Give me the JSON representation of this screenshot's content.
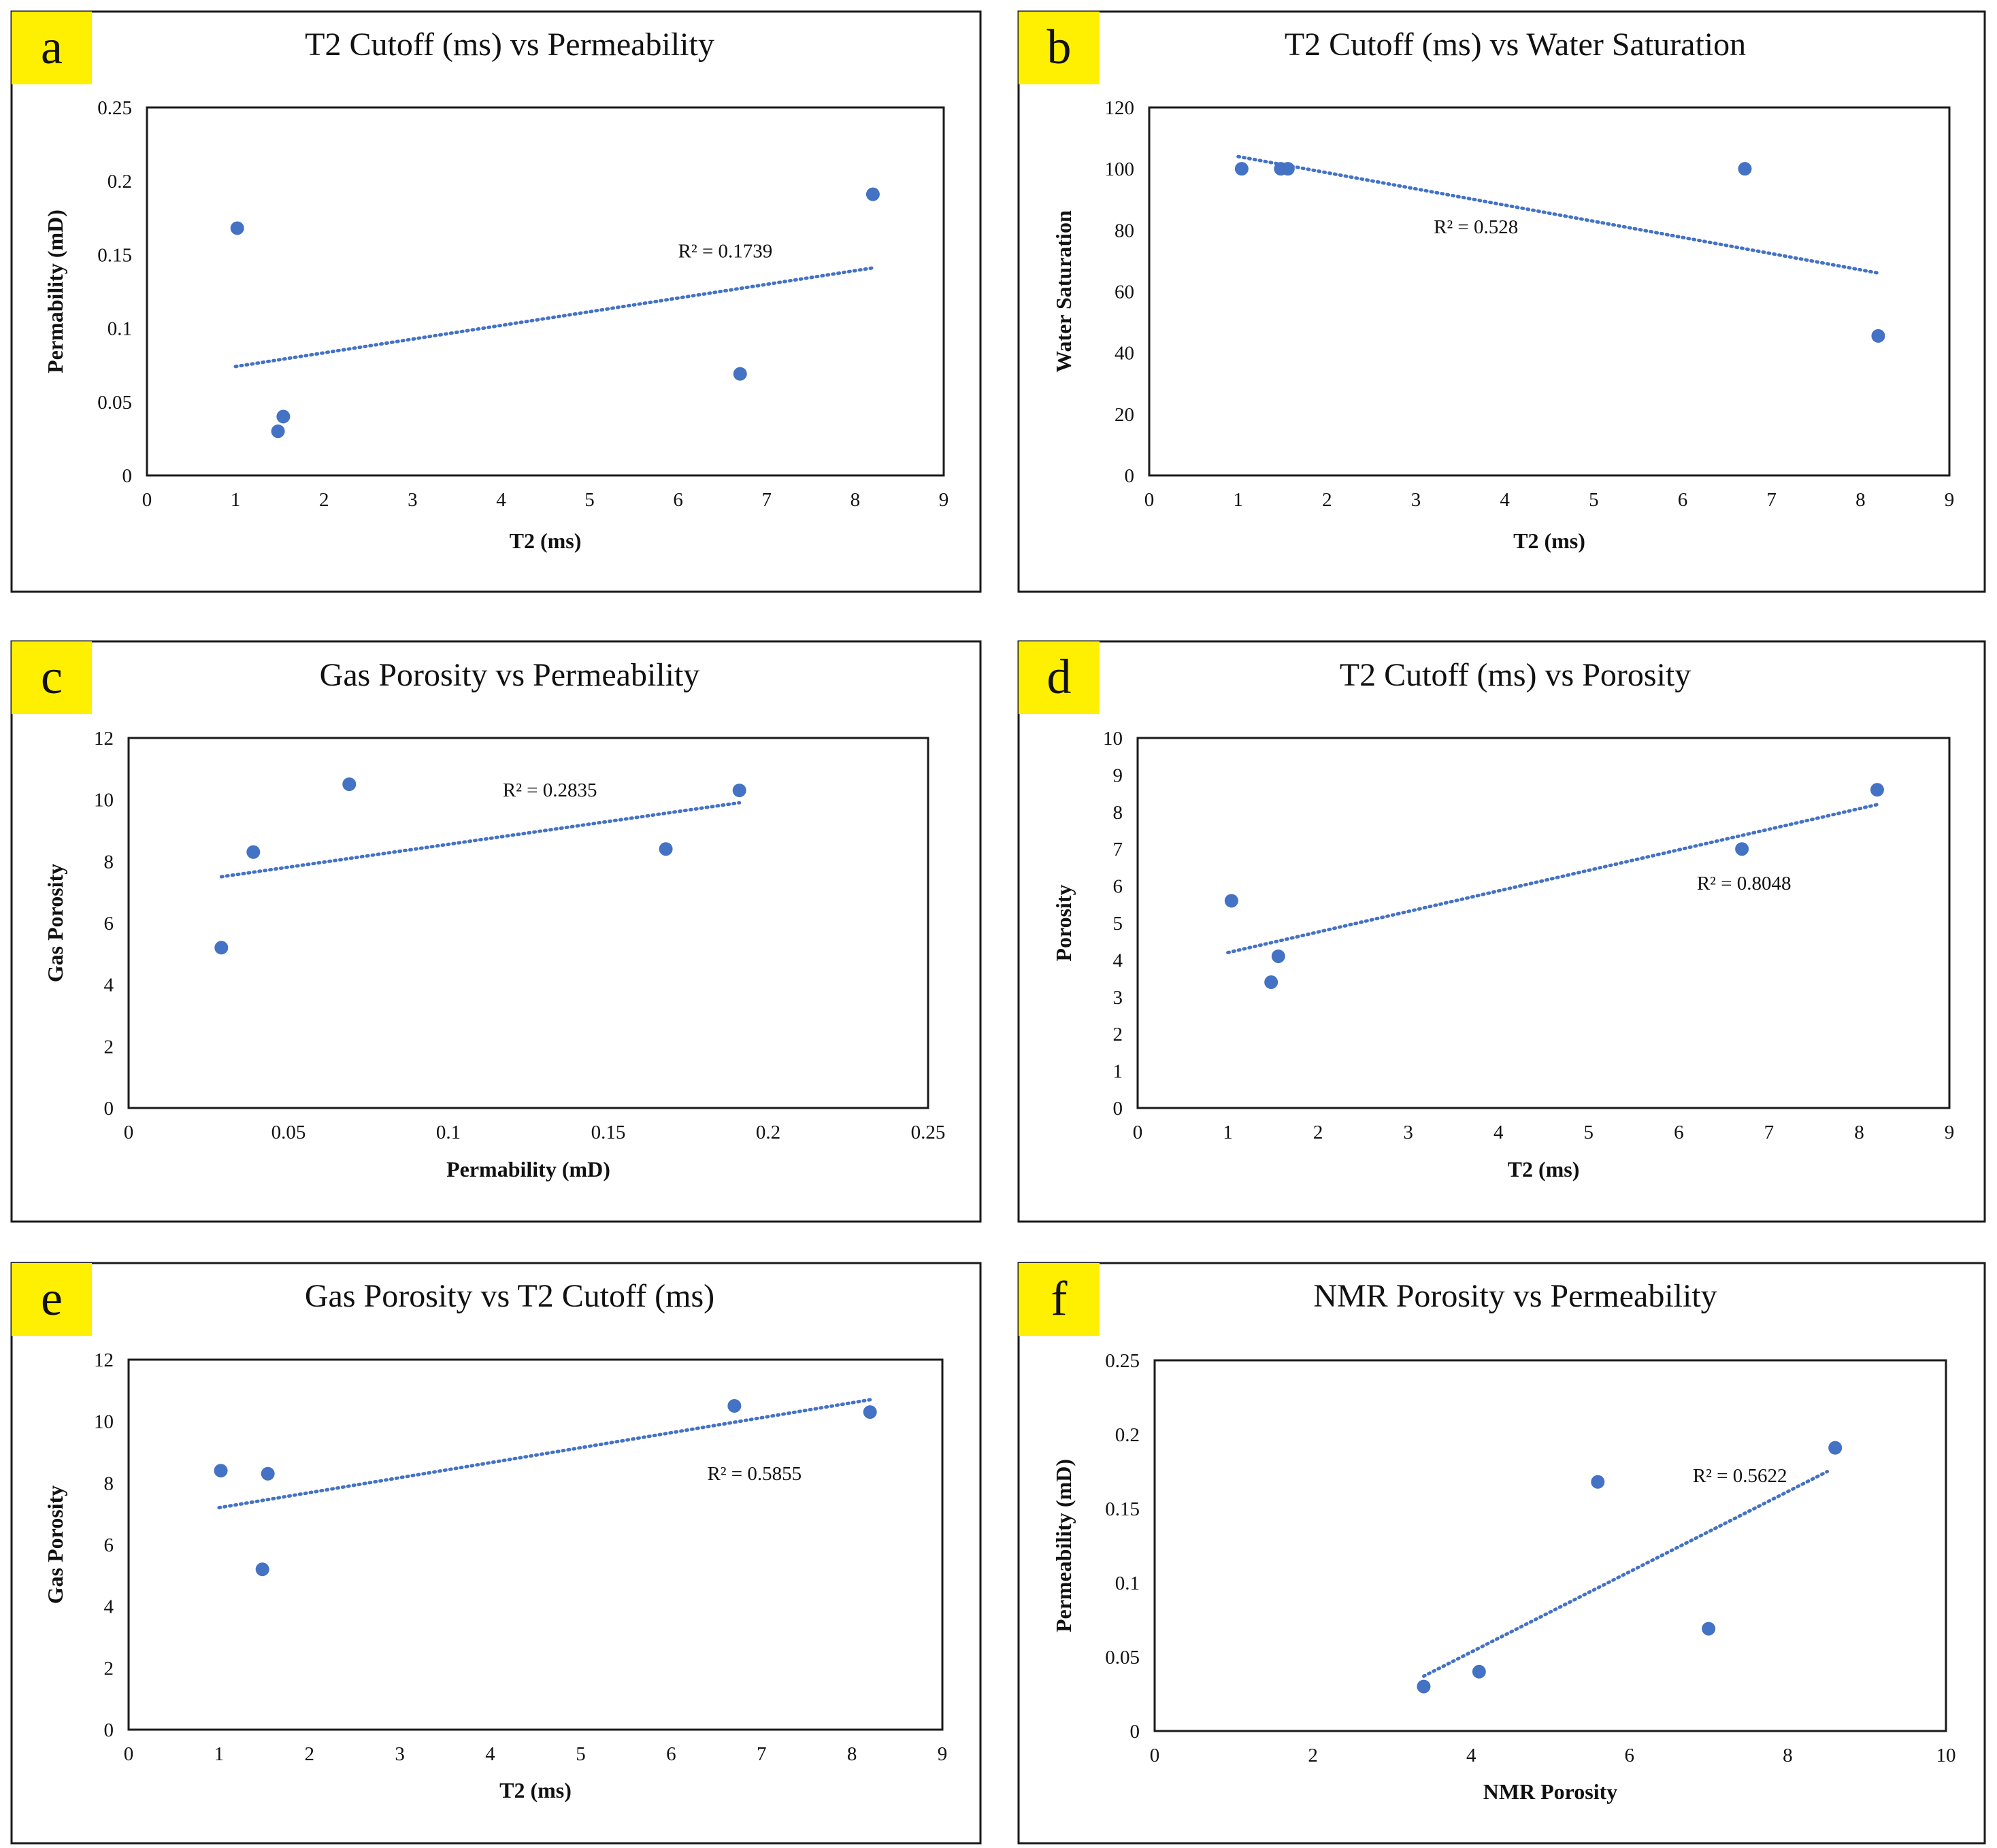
{
  "figure": {
    "accent_color": "#4472c4",
    "letter_bg_color": "#ffef00"
  },
  "chart_data": [
    {
      "panel": "a",
      "type": "scatter",
      "title": "T2 Cutoff (ms) vs Permeability",
      "xlabel": "T2 (ms)",
      "ylabel": "Permability (mD)",
      "xlim": [
        0,
        9
      ],
      "ylim": [
        0,
        0.25
      ],
      "xticks": [
        0,
        1,
        2,
        3,
        4,
        5,
        6,
        7,
        8,
        9
      ],
      "yticks": [
        0,
        0.05,
        0.1,
        0.15,
        0.2,
        0.25
      ],
      "xtick_labels": [
        "0",
        "1",
        "2",
        "3",
        "4",
        "5",
        "6",
        "7",
        "8",
        "9"
      ],
      "ytick_labels": [
        "0",
        "0.05",
        "0.1",
        "0.15",
        "0.2",
        "0.25"
      ],
      "points": [
        [
          1.02,
          0.168
        ],
        [
          1.48,
          0.03
        ],
        [
          1.54,
          0.04
        ],
        [
          6.7,
          0.069
        ],
        [
          8.2,
          0.191
        ]
      ],
      "trendline": [
        [
          1.0,
          0.074
        ],
        [
          8.2,
          0.141
        ]
      ],
      "r2_label": "R² = 0.1739",
      "r2_anchor": [
        6.0,
        0.148
      ]
    },
    {
      "panel": "b",
      "type": "scatter",
      "title": "T2 Cutoff  (ms) vs Water Saturation",
      "xlabel": "T2 (ms)",
      "ylabel": "Water Saturation",
      "xlim": [
        0,
        9
      ],
      "ylim": [
        0,
        120
      ],
      "xticks": [
        0,
        1,
        2,
        3,
        4,
        5,
        6,
        7,
        8,
        9
      ],
      "yticks": [
        0,
        20,
        40,
        60,
        80,
        100,
        120
      ],
      "xtick_labels": [
        "0",
        "1",
        "2",
        "3",
        "4",
        "5",
        "6",
        "7",
        "8",
        "9"
      ],
      "ytick_labels": [
        "0",
        "20",
        "40",
        "60",
        "80",
        "100",
        "120"
      ],
      "points": [
        [
          1.04,
          100
        ],
        [
          1.48,
          100
        ],
        [
          1.56,
          100
        ],
        [
          6.7,
          100
        ],
        [
          8.2,
          45.5
        ]
      ],
      "trendline": [
        [
          1.0,
          104
        ],
        [
          8.2,
          66
        ]
      ],
      "r2_label": "R² = 0.528",
      "r2_anchor": [
        3.2,
        79
      ]
    },
    {
      "panel": "c",
      "type": "scatter",
      "title": "Gas Porosity vs Permeability",
      "xlabel": "Permability (mD)",
      "ylabel": "Gas Porosity",
      "xlim": [
        0,
        0.25
      ],
      "ylim": [
        0,
        12
      ],
      "xticks": [
        0,
        0.05,
        0.1,
        0.15,
        0.2,
        0.25
      ],
      "yticks": [
        0,
        2,
        4,
        6,
        8,
        10,
        12
      ],
      "xtick_labels": [
        "0",
        "0.05",
        "0.1",
        "0.15",
        "0.2",
        "0.25"
      ],
      "ytick_labels": [
        "0",
        "2",
        "4",
        "6",
        "8",
        "10",
        "12"
      ],
      "points": [
        [
          0.029,
          5.2
        ],
        [
          0.039,
          8.3
        ],
        [
          0.069,
          10.5
        ],
        [
          0.168,
          8.4
        ],
        [
          0.191,
          10.3
        ]
      ],
      "trendline": [
        [
          0.029,
          7.5
        ],
        [
          0.191,
          9.9
        ]
      ],
      "r2_label": "R² = 0.2835",
      "r2_anchor": [
        0.117,
        10.1
      ]
    },
    {
      "panel": "d",
      "type": "scatter",
      "title": "T2 Cutoff (ms) vs Porosity",
      "xlabel": "T2 (ms)",
      "ylabel": "Porosity",
      "xlim": [
        0,
        9
      ],
      "ylim": [
        0,
        10
      ],
      "xticks": [
        0,
        1,
        2,
        3,
        4,
        5,
        6,
        7,
        8,
        9
      ],
      "yticks": [
        0,
        1,
        2,
        3,
        4,
        5,
        6,
        7,
        8,
        9,
        10
      ],
      "xtick_labels": [
        "0",
        "1",
        "2",
        "3",
        "4",
        "5",
        "6",
        "7",
        "8",
        "9"
      ],
      "ytick_labels": [
        "0",
        "1",
        "2",
        "3",
        "4",
        "5",
        "6",
        "7",
        "8",
        "9",
        "10"
      ],
      "points": [
        [
          1.04,
          5.6
        ],
        [
          1.48,
          3.4
        ],
        [
          1.56,
          4.1
        ],
        [
          6.7,
          7.0
        ],
        [
          8.2,
          8.6
        ]
      ],
      "trendline": [
        [
          1.0,
          4.2
        ],
        [
          8.2,
          8.2
        ]
      ],
      "r2_label": "R² = 0.8048",
      "r2_anchor": [
        6.2,
        5.9
      ]
    },
    {
      "panel": "e",
      "type": "scatter",
      "title": "Gas Porosity vs T2 Cutoff (ms)",
      "xlabel": "T2 (ms)",
      "ylabel": "Gas Porosity",
      "xlim": [
        0,
        9
      ],
      "ylim": [
        0,
        12
      ],
      "xticks": [
        0,
        1,
        2,
        3,
        4,
        5,
        6,
        7,
        8,
        9
      ],
      "yticks": [
        0,
        2,
        4,
        6,
        8,
        10,
        12
      ],
      "xtick_labels": [
        "0",
        "1",
        "2",
        "3",
        "4",
        "5",
        "6",
        "7",
        "8",
        "9"
      ],
      "ytick_labels": [
        "0",
        "2",
        "4",
        "6",
        "8",
        "10",
        "12"
      ],
      "points": [
        [
          1.02,
          8.4
        ],
        [
          1.48,
          5.2
        ],
        [
          1.54,
          8.3
        ],
        [
          6.7,
          10.5
        ],
        [
          8.2,
          10.3
        ]
      ],
      "trendline": [
        [
          1.0,
          7.2
        ],
        [
          8.2,
          10.7
        ]
      ],
      "r2_label": "R² = 0.5855",
      "r2_anchor": [
        6.4,
        8.1
      ]
    },
    {
      "panel": "f",
      "type": "scatter",
      "title": "NMR Porosity vs Permeability",
      "xlabel": "NMR Porosity",
      "ylabel": "Permeability  (mD)",
      "xlim": [
        0,
        10
      ],
      "ylim": [
        0,
        0.25
      ],
      "xticks": [
        0,
        2,
        4,
        6,
        8,
        10
      ],
      "yticks": [
        0,
        0.05,
        0.1,
        0.15,
        0.2,
        0.25
      ],
      "xtick_labels": [
        "0",
        "2",
        "4",
        "6",
        "8",
        "10"
      ],
      "ytick_labels": [
        "0",
        "0.05",
        "0.1",
        "0.15",
        "0.2",
        "0.25"
      ],
      "points": [
        [
          3.4,
          0.03
        ],
        [
          4.1,
          0.04
        ],
        [
          5.6,
          0.168
        ],
        [
          7.0,
          0.069
        ],
        [
          8.6,
          0.191
        ]
      ],
      "trendline": [
        [
          3.4,
          0.037
        ],
        [
          8.5,
          0.175
        ]
      ],
      "r2_label": "R² = 0.5622",
      "r2_anchor": [
        6.8,
        0.168
      ]
    }
  ]
}
